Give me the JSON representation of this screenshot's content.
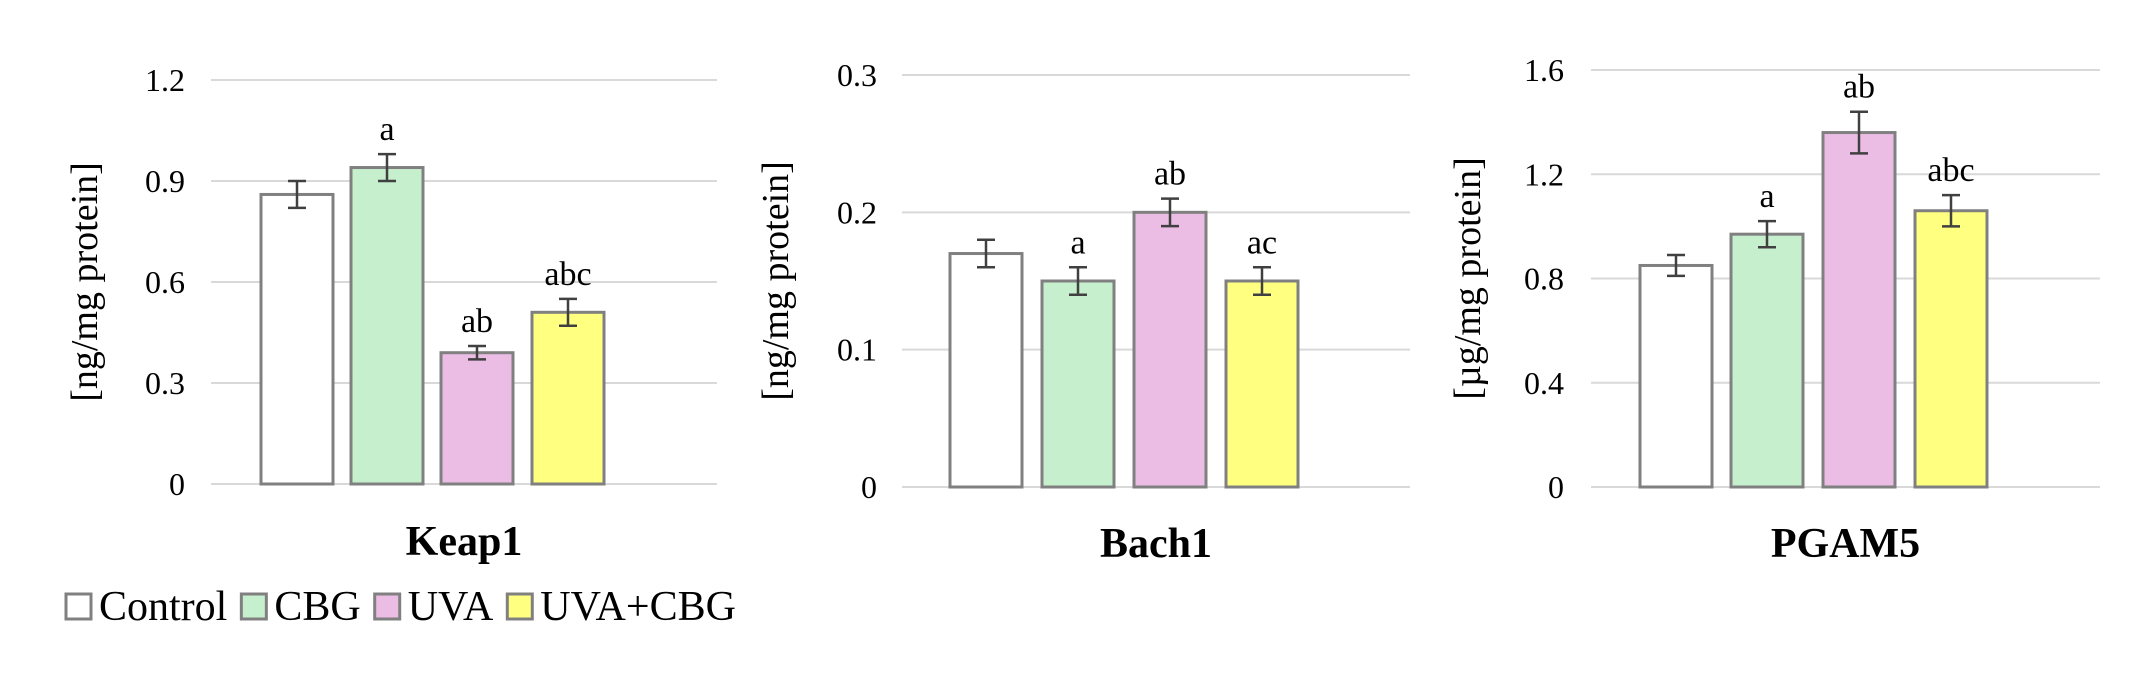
{
  "chart_data": [
    {
      "type": "bar",
      "title": "Keap1",
      "ylabel": "[ng/mg protein]",
      "ylim": [
        0,
        1.2
      ],
      "yticks": [
        0,
        0.3,
        0.6,
        0.9,
        1.2
      ],
      "ytick_labels": [
        "0",
        "0.3",
        "0.6",
        "0.9",
        "1.2"
      ],
      "categories": [
        "Control",
        "CBG",
        "UVA",
        "UVA+CBG"
      ],
      "values": [
        0.86,
        0.94,
        0.39,
        0.51
      ],
      "errors": [
        0.04,
        0.04,
        0.02,
        0.04
      ],
      "annotations": [
        "",
        "a",
        "ab",
        "abc"
      ],
      "grid": true
    },
    {
      "type": "bar",
      "title": "Bach1",
      "ylabel": "[ng/mg protein]",
      "ylim": [
        0,
        0.3
      ],
      "yticks": [
        0,
        0.1,
        0.2,
        0.3
      ],
      "ytick_labels": [
        "0",
        "0.1",
        "0.2",
        "0.3"
      ],
      "categories": [
        "Control",
        "CBG",
        "UVA",
        "UVA+CBG"
      ],
      "values": [
        0.17,
        0.15,
        0.2,
        0.15
      ],
      "errors": [
        0.01,
        0.01,
        0.01,
        0.01
      ],
      "annotations": [
        "",
        "a",
        "ab",
        "ac"
      ],
      "grid": true
    },
    {
      "type": "bar",
      "title": "PGAM5",
      "ylabel": "[µg/mg protein]",
      "ylim": [
        0,
        1.6
      ],
      "yticks": [
        0,
        0.4,
        0.8,
        1.2,
        1.6
      ],
      "ytick_labels": [
        "0",
        "0.4",
        "0.8",
        "1.2",
        "1.6"
      ],
      "categories": [
        "Control",
        "CBG",
        "UVA",
        "UVA+CBG"
      ],
      "values": [
        0.85,
        0.97,
        1.36,
        1.06
      ],
      "errors": [
        0.04,
        0.05,
        0.08,
        0.06
      ],
      "annotations": [
        "",
        "a",
        "ab",
        "abc"
      ],
      "grid": true
    }
  ],
  "legend": {
    "placement": "bottom-left",
    "items": [
      {
        "label": "Control",
        "color": "#ffffff"
      },
      {
        "label": "CBG",
        "color": "#c6efce"
      },
      {
        "label": "UVA",
        "color": "#ebbde5"
      },
      {
        "label": "UVA+CBG",
        "color": "#ffff80"
      }
    ]
  },
  "colors": {
    "bar_stroke": "#808080",
    "grid": "#d9d9d9",
    "error": "#404040",
    "text": "#000000"
  }
}
